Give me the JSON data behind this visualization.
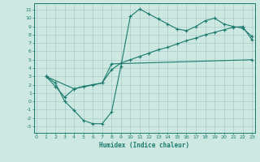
{
  "xlabel": "Humidex (Indice chaleur)",
  "bg_color": "#cce8e0",
  "line_color": "#1a7a6e",
  "grid_color": "#aacccc",
  "x_ticks": [
    0,
    1,
    2,
    3,
    4,
    5,
    6,
    7,
    8,
    9,
    10,
    11,
    12,
    13,
    14,
    15,
    16,
    17,
    18,
    19,
    20,
    21,
    22,
    23
  ],
  "y_ticks": [
    -3,
    -2,
    -1,
    0,
    1,
    2,
    3,
    4,
    5,
    6,
    7,
    8,
    9,
    10,
    11
  ],
  "xlim": [
    -0.3,
    23.3
  ],
  "ylim": [
    -3.8,
    11.8
  ],
  "line1_x": [
    1,
    2,
    3,
    4,
    5,
    6,
    7,
    8,
    9,
    10,
    11,
    12,
    13,
    14,
    15,
    16,
    17,
    18,
    19,
    20,
    21,
    22,
    23
  ],
  "line1_y": [
    3.0,
    2.2,
    0.0,
    -1.1,
    -2.3,
    -2.7,
    -2.7,
    -1.3,
    4.2,
    10.2,
    11.1,
    10.5,
    9.9,
    9.3,
    8.7,
    8.5,
    9.0,
    9.7,
    10.0,
    9.3,
    9.0,
    8.8,
    7.8
  ],
  "line2_x": [
    1,
    2,
    3,
    4,
    5,
    6,
    7,
    8,
    9,
    10,
    11,
    12,
    13,
    14,
    15,
    16,
    17,
    18,
    19,
    20,
    21,
    22,
    23
  ],
  "line2_y": [
    3.0,
    1.8,
    0.5,
    1.5,
    1.8,
    2.0,
    2.2,
    3.8,
    4.6,
    5.0,
    5.4,
    5.8,
    6.2,
    6.5,
    6.9,
    7.3,
    7.6,
    8.0,
    8.3,
    8.6,
    8.9,
    9.0,
    7.4
  ],
  "line3_x": [
    1,
    4,
    7,
    8,
    23
  ],
  "line3_y": [
    3.0,
    1.5,
    2.2,
    4.5,
    5.0
  ]
}
